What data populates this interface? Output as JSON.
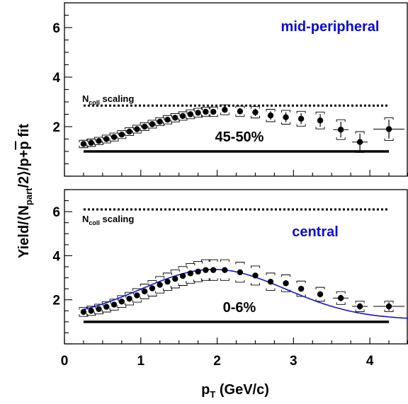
{
  "chart_data": [
    {
      "type": "scatter",
      "panel": "top",
      "label_centrality": "45-50%",
      "label_region": "mid-peripheral",
      "ncoll_label": {
        "main": "N",
        "sub": "coll",
        "rest": " scaling"
      },
      "ncoll_level": 2.85,
      "npart_level": 1.0,
      "xlim": [
        0,
        4.5
      ],
      "ylim": [
        0,
        7.0
      ],
      "yticks": [
        2,
        4,
        6
      ],
      "points": [
        {
          "x": 0.25,
          "y": 1.3,
          "err": 0.07
        },
        {
          "x": 0.35,
          "y": 1.35,
          "err": 0.07
        },
        {
          "x": 0.45,
          "y": 1.42,
          "err": 0.07
        },
        {
          "x": 0.55,
          "y": 1.5,
          "err": 0.08
        },
        {
          "x": 0.65,
          "y": 1.58,
          "err": 0.08
        },
        {
          "x": 0.75,
          "y": 1.68,
          "err": 0.08
        },
        {
          "x": 0.85,
          "y": 1.8,
          "err": 0.08
        },
        {
          "x": 0.95,
          "y": 1.9,
          "err": 0.08
        },
        {
          "x": 1.05,
          "y": 2.0,
          "err": 0.08
        },
        {
          "x": 1.15,
          "y": 2.1,
          "err": 0.08
        },
        {
          "x": 1.25,
          "y": 2.2,
          "err": 0.08
        },
        {
          "x": 1.35,
          "y": 2.28,
          "err": 0.09
        },
        {
          "x": 1.45,
          "y": 2.36,
          "err": 0.09
        },
        {
          "x": 1.55,
          "y": 2.43,
          "err": 0.09
        },
        {
          "x": 1.65,
          "y": 2.5,
          "err": 0.1
        },
        {
          "x": 1.75,
          "y": 2.56,
          "err": 0.1
        },
        {
          "x": 1.85,
          "y": 2.6,
          "err": 0.1
        },
        {
          "x": 1.95,
          "y": 2.6,
          "err": 0.11
        },
        {
          "x": 2.1,
          "y": 2.68,
          "err": 0.12
        },
        {
          "x": 2.3,
          "y": 2.62,
          "err": 0.13
        },
        {
          "x": 2.5,
          "y": 2.58,
          "err": 0.15
        },
        {
          "x": 2.7,
          "y": 2.45,
          "err": 0.17
        },
        {
          "x": 2.9,
          "y": 2.38,
          "err": 0.2
        },
        {
          "x": 3.1,
          "y": 2.32,
          "err": 0.22
        },
        {
          "x": 3.35,
          "y": 2.25,
          "err": 0.26
        },
        {
          "x": 3.62,
          "y": 1.88,
          "err": 0.32
        },
        {
          "x": 3.87,
          "y": 1.38,
          "err": 0.34
        },
        {
          "x": 4.25,
          "y": 1.9,
          "err": 0.38
        }
      ]
    },
    {
      "type": "scatter",
      "panel": "bottom",
      "label_centrality": "0-6%",
      "label_region": "central",
      "ncoll_label": {
        "main": "N",
        "sub": "coll",
        "rest": " scaling"
      },
      "ncoll_level": 6.1,
      "npart_level": 1.0,
      "xlim": [
        0,
        4.5
      ],
      "ylim": [
        0,
        7.0
      ],
      "yticks": [
        2,
        4,
        6
      ],
      "points": [
        {
          "x": 0.25,
          "y": 1.45,
          "err": 0.07
        },
        {
          "x": 0.35,
          "y": 1.5,
          "err": 0.07
        },
        {
          "x": 0.45,
          "y": 1.58,
          "err": 0.07
        },
        {
          "x": 0.55,
          "y": 1.68,
          "err": 0.08
        },
        {
          "x": 0.65,
          "y": 1.78,
          "err": 0.08
        },
        {
          "x": 0.75,
          "y": 1.92,
          "err": 0.08
        },
        {
          "x": 0.85,
          "y": 2.05,
          "err": 0.08
        },
        {
          "x": 0.95,
          "y": 2.2,
          "err": 0.08
        },
        {
          "x": 1.05,
          "y": 2.38,
          "err": 0.08
        },
        {
          "x": 1.15,
          "y": 2.52,
          "err": 0.08
        },
        {
          "x": 1.25,
          "y": 2.68,
          "err": 0.08
        },
        {
          "x": 1.35,
          "y": 2.82,
          "err": 0.09
        },
        {
          "x": 1.45,
          "y": 2.95,
          "err": 0.09
        },
        {
          "x": 1.55,
          "y": 3.08,
          "err": 0.09
        },
        {
          "x": 1.65,
          "y": 3.2,
          "err": 0.09
        },
        {
          "x": 1.75,
          "y": 3.28,
          "err": 0.1
        },
        {
          "x": 1.85,
          "y": 3.35,
          "err": 0.1
        },
        {
          "x": 1.95,
          "y": 3.35,
          "err": 0.1
        },
        {
          "x": 2.1,
          "y": 3.35,
          "err": 0.1
        },
        {
          "x": 2.3,
          "y": 3.25,
          "err": 0.11
        },
        {
          "x": 2.5,
          "y": 3.1,
          "err": 0.12
        },
        {
          "x": 2.7,
          "y": 2.82,
          "err": 0.12
        },
        {
          "x": 2.9,
          "y": 2.75,
          "err": 0.13
        },
        {
          "x": 3.1,
          "y": 2.5,
          "err": 0.13
        },
        {
          "x": 3.35,
          "y": 2.25,
          "err": 0.14
        },
        {
          "x": 3.62,
          "y": 2.08,
          "err": 0.15
        },
        {
          "x": 3.87,
          "y": 1.7,
          "err": 0.15
        },
        {
          "x": 4.25,
          "y": 1.7,
          "err": 0.2
        }
      ],
      "syst_band_frac": 0.14,
      "fit": {
        "baseline": 1.1,
        "amplitude": 2.28,
        "center": 1.95,
        "sigma": 0.95,
        "xrange": [
          0.25,
          4.5
        ]
      }
    }
  ],
  "xaxis": {
    "ticks": [
      0,
      1,
      2,
      3,
      4
    ],
    "title_main": "p",
    "title_sub": "T",
    "title_rest": " (GeV/c)"
  },
  "yaxis": {
    "title_pre": "Yield/⟨N",
    "title_sub": "part",
    "title_mid": "/2⟩/p+",
    "title_bar": "p",
    "title_post": " fit"
  },
  "colors": {
    "fit": "#1515c8",
    "blue_label": "#0b0bd6",
    "marker": "#000000"
  }
}
